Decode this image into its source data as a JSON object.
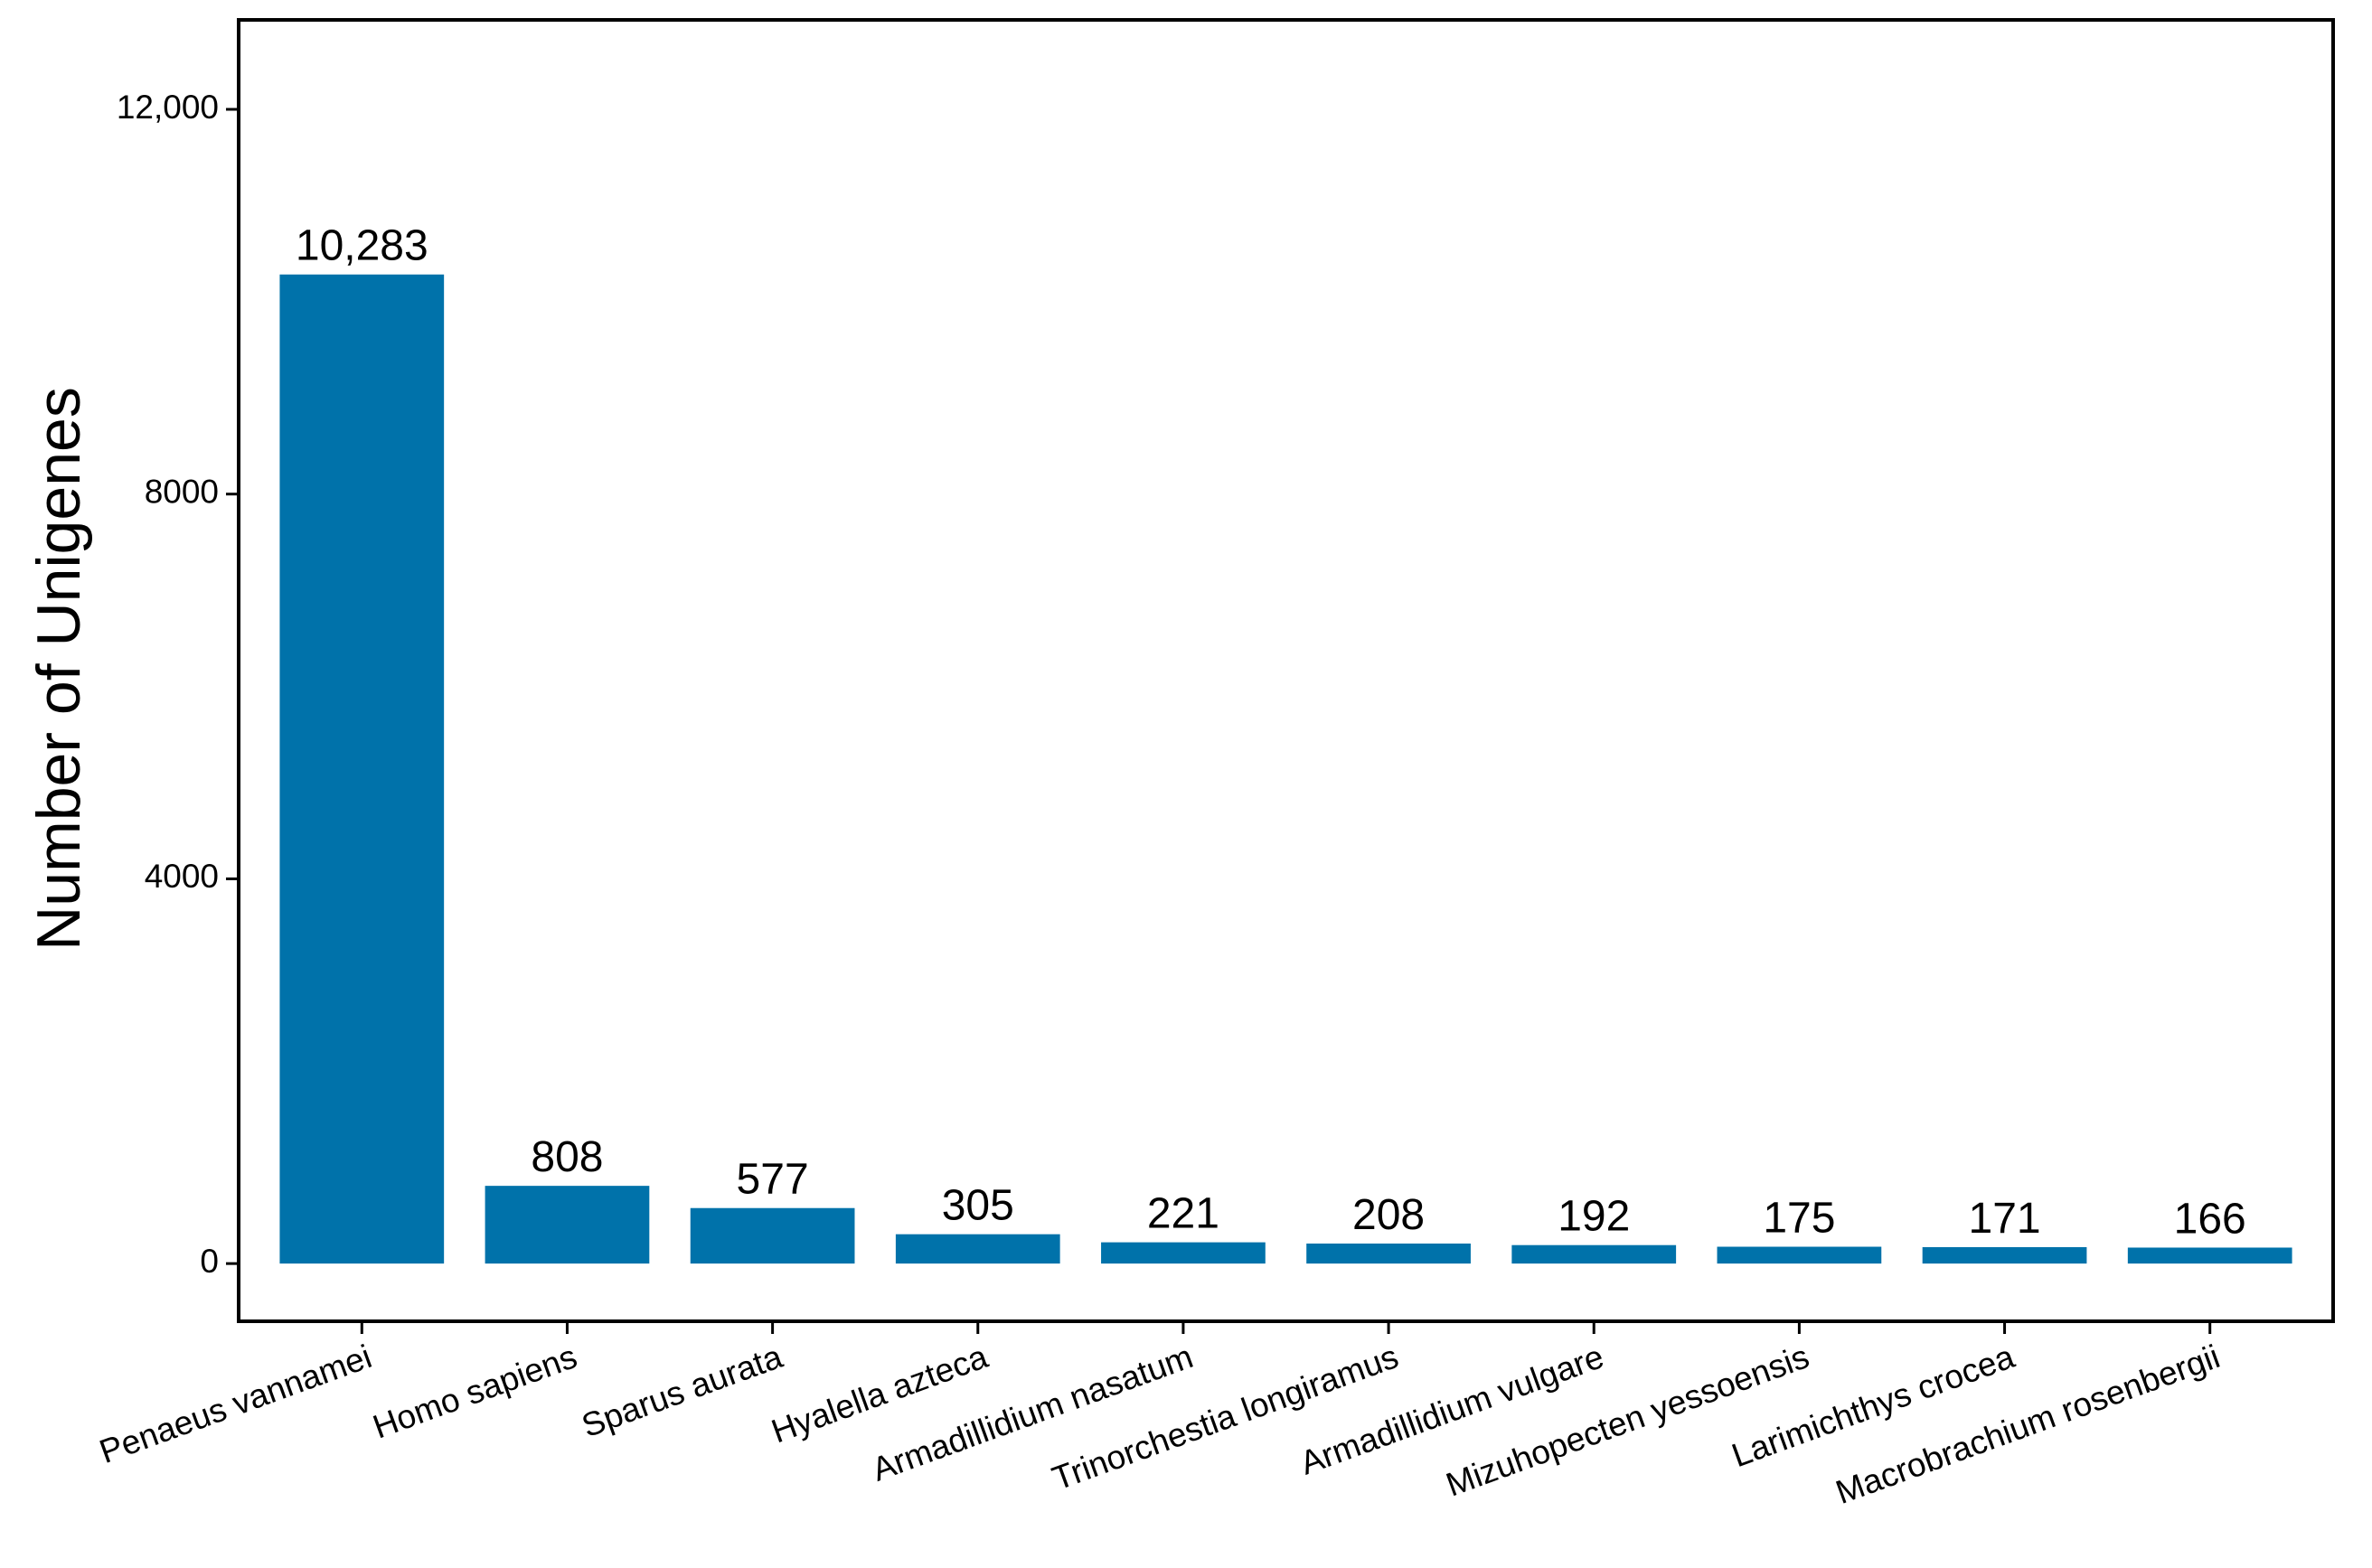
{
  "chart_data": {
    "type": "bar",
    "y_label": "Number of Unigenes",
    "categories": [
      "Penaeus vannamei",
      "Homo sapiens",
      "Sparus aurata",
      "Hyalella azteca",
      "Armadillidium nasatum",
      "Trinorchestia longiramus",
      "Armadillidium vulgare",
      "Mizuhopecten yessoensis",
      "Larimichthys crocea",
      "Macrobrachium rosenbergii"
    ],
    "values": [
      10283,
      808,
      577,
      305,
      221,
      208,
      192,
      175,
      171,
      166
    ],
    "value_labels": [
      "10,283",
      "808",
      "577",
      "305",
      "221",
      "208",
      "192",
      "175",
      "171",
      "166"
    ],
    "color": "#0072aa",
    "ylim": [
      -600,
      12930
    ],
    "yticks": [
      0,
      4000,
      8000,
      {
        "value": 12000,
        "label": "12,000"
      }
    ],
    "grid": false
  }
}
